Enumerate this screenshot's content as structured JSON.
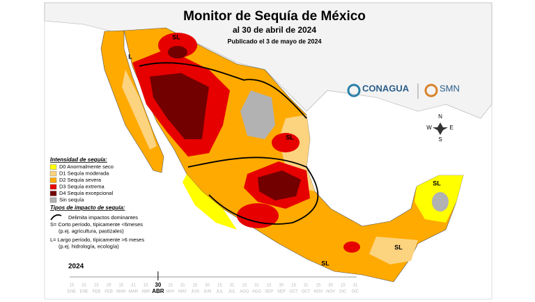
{
  "header": {
    "title": "Monitor de Sequía de México",
    "date": "al 30 de abril de 2024",
    "published": "Publicado el 3 de mayo de 2024"
  },
  "logos": {
    "conagua": "CONAGUA",
    "smn": "SMN"
  },
  "compass": {
    "n": "N",
    "s": "S",
    "e": "E",
    "w": "W"
  },
  "legend": {
    "title": "Intensidad de sequía:",
    "items": [
      {
        "label": "D0 Anormalmente seco",
        "color": "#ffff00"
      },
      {
        "label": "D1 Sequía moderada",
        "color": "#fcd37f"
      },
      {
        "label": "D2 Sequía severa",
        "color": "#ffaa00"
      },
      {
        "label": "D3 Sequía extrema",
        "color": "#e60000"
      },
      {
        "label": "D4 Sequía excepcional",
        "color": "#730000"
      },
      {
        "label": "Sin sequía",
        "color": "#b2b2b2"
      }
    ],
    "impact_title": "Tipos de impacto de sequía:",
    "impact_line": "Delimita impactos dominantes",
    "impact_notes": [
      "S= Corto período, típicamente <6meses",
      "(p.ej. agricultura, pastizales)",
      "L= Largo período, típicamente >6 meses",
      "(p.ej. hidrología, ecología)"
    ]
  },
  "map_labels": [
    "SL",
    "L",
    "SL",
    "SL",
    "SL",
    "SL"
  ],
  "timeline": {
    "year": "2024",
    "current": 7,
    "ticks": [
      {
        "day": "15",
        "month": "ENE"
      },
      {
        "day": "31",
        "month": "ENE"
      },
      {
        "day": "15",
        "month": "FEB"
      },
      {
        "day": "29",
        "month": "FEB"
      },
      {
        "day": "15",
        "month": "MAR"
      },
      {
        "day": "31",
        "month": "MAR"
      },
      {
        "day": "15",
        "month": "ABR"
      },
      {
        "day": "30",
        "month": "ABR"
      },
      {
        "day": "15",
        "month": "MAY"
      },
      {
        "day": "31",
        "month": "MAY"
      },
      {
        "day": "15",
        "month": "JUN"
      },
      {
        "day": "30",
        "month": "JUN"
      },
      {
        "day": "15",
        "month": "JUL"
      },
      {
        "day": "31",
        "month": "JUL"
      },
      {
        "day": "15",
        "month": "AGO"
      },
      {
        "day": "31",
        "month": "AGO"
      },
      {
        "day": "15",
        "month": "SEP"
      },
      {
        "day": "30",
        "month": "SEP"
      },
      {
        "day": "15",
        "month": "OCT"
      },
      {
        "day": "31",
        "month": "OCT"
      },
      {
        "day": "15",
        "month": "NOV"
      },
      {
        "day": "30",
        "month": "NOV"
      },
      {
        "day": "15",
        "month": "DIC"
      },
      {
        "day": "31",
        "month": "DIC"
      }
    ]
  }
}
